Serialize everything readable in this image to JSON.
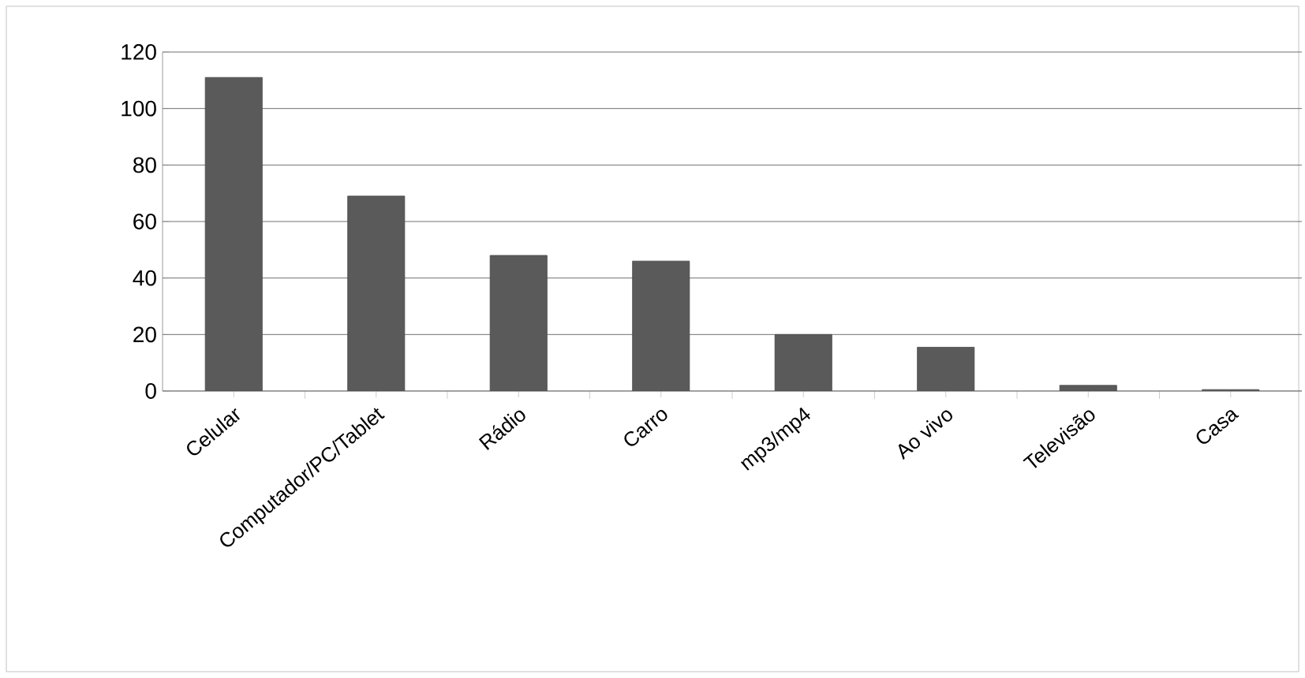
{
  "chart_data": {
    "type": "bar",
    "categories": [
      "Celular",
      "Computador/PC/Tablet",
      "Rádio",
      "Carro",
      "mp3/mp4",
      "Ao vivo",
      "Televisão",
      "Casa"
    ],
    "values": [
      111,
      69,
      48,
      46,
      20,
      15.5,
      2,
      0.5
    ],
    "color": "#5a5a5a",
    "ylim": [
      0,
      120
    ],
    "yticks": [
      0,
      20,
      40,
      60,
      80,
      100,
      120
    ],
    "grid": "y"
  }
}
